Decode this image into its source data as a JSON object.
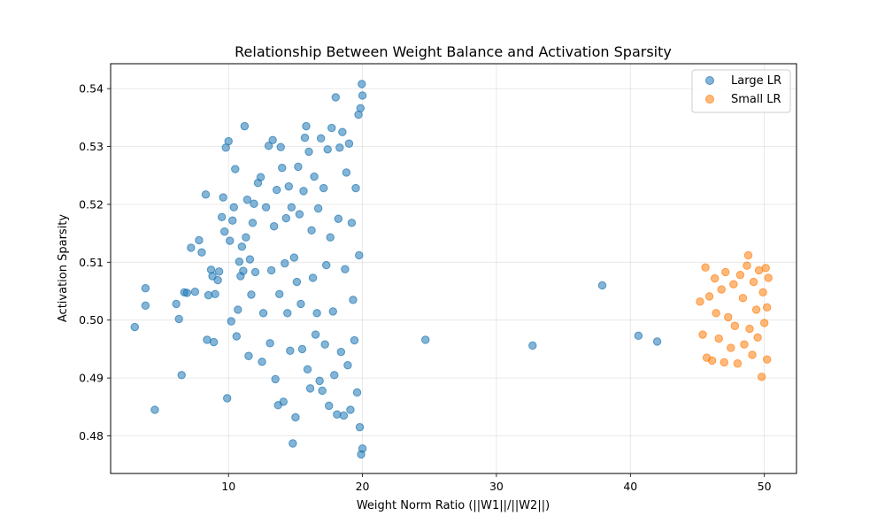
{
  "chart_data": {
    "type": "scatter",
    "title": "Relationship Between Weight Balance and Activation Sparsity",
    "xlabel": "Weight Norm Ratio (||W1||/||W2||)",
    "ylabel": "Activation Sparsity",
    "xlim": [
      1.2,
      52.4
    ],
    "ylim": [
      0.4735,
      0.5443
    ],
    "xticks": [
      10,
      20,
      30,
      40,
      50
    ],
    "yticks": [
      0.48,
      0.49,
      0.5,
      0.51,
      0.52,
      0.53,
      0.54
    ],
    "grid": true,
    "legend_position": "top-right",
    "series": [
      {
        "name": "Large LR",
        "color": "#1f77b4",
        "points": [
          [
            3.0,
            0.4988
          ],
          [
            3.8,
            0.5055
          ],
          [
            3.8,
            0.5025
          ],
          [
            4.5,
            0.4845
          ],
          [
            6.1,
            0.5028
          ],
          [
            6.3,
            0.5002
          ],
          [
            6.5,
            0.4905
          ],
          [
            6.7,
            0.5048
          ],
          [
            6.9,
            0.5047
          ],
          [
            7.2,
            0.5125
          ],
          [
            7.5,
            0.5049
          ],
          [
            7.8,
            0.5138
          ],
          [
            8.0,
            0.5117
          ],
          [
            8.3,
            0.5217
          ],
          [
            8.4,
            0.4966
          ],
          [
            8.5,
            0.5043
          ],
          [
            8.7,
            0.5087
          ],
          [
            8.8,
            0.5076
          ],
          [
            8.9,
            0.4962
          ],
          [
            9.0,
            0.5045
          ],
          [
            9.2,
            0.5069
          ],
          [
            9.3,
            0.5084
          ],
          [
            9.5,
            0.5178
          ],
          [
            9.6,
            0.5212
          ],
          [
            9.7,
            0.5153
          ],
          [
            9.8,
            0.5298
          ],
          [
            9.9,
            0.4865
          ],
          [
            10.0,
            0.5309
          ],
          [
            10.1,
            0.5137
          ],
          [
            10.2,
            0.4998
          ],
          [
            10.3,
            0.5172
          ],
          [
            10.4,
            0.5195
          ],
          [
            10.5,
            0.5261
          ],
          [
            10.6,
            0.4972
          ],
          [
            10.7,
            0.5018
          ],
          [
            10.8,
            0.5101
          ],
          [
            10.9,
            0.5076
          ],
          [
            11.0,
            0.5127
          ],
          [
            11.1,
            0.5085
          ],
          [
            11.2,
            0.5335
          ],
          [
            11.3,
            0.5143
          ],
          [
            11.4,
            0.5208
          ],
          [
            11.5,
            0.4938
          ],
          [
            11.6,
            0.5105
          ],
          [
            11.7,
            0.5044
          ],
          [
            11.8,
            0.5168
          ],
          [
            11.9,
            0.5201
          ],
          [
            12.0,
            0.5083
          ],
          [
            12.2,
            0.5237
          ],
          [
            12.4,
            0.5247
          ],
          [
            12.5,
            0.4928
          ],
          [
            12.6,
            0.5012
          ],
          [
            12.8,
            0.5195
          ],
          [
            13.0,
            0.5301
          ],
          [
            13.1,
            0.496
          ],
          [
            13.2,
            0.5086
          ],
          [
            13.3,
            0.5311
          ],
          [
            13.4,
            0.5162
          ],
          [
            13.5,
            0.4898
          ],
          [
            13.6,
            0.5225
          ],
          [
            13.7,
            0.4853
          ],
          [
            13.8,
            0.5045
          ],
          [
            13.9,
            0.5299
          ],
          [
            14.0,
            0.5263
          ],
          [
            14.1,
            0.4859
          ],
          [
            14.2,
            0.5098
          ],
          [
            14.3,
            0.5176
          ],
          [
            14.4,
            0.5012
          ],
          [
            14.5,
            0.5231
          ],
          [
            14.6,
            0.4947
          ],
          [
            14.7,
            0.5195
          ],
          [
            14.8,
            0.4787
          ],
          [
            14.9,
            0.5108
          ],
          [
            15.0,
            0.4832
          ],
          [
            15.1,
            0.5066
          ],
          [
            15.2,
            0.5265
          ],
          [
            15.3,
            0.5183
          ],
          [
            15.4,
            0.5028
          ],
          [
            15.5,
            0.495
          ],
          [
            15.6,
            0.5223
          ],
          [
            15.7,
            0.5315
          ],
          [
            15.8,
            0.5335
          ],
          [
            15.9,
            0.4915
          ],
          [
            16.0,
            0.5291
          ],
          [
            16.1,
            0.4882
          ],
          [
            16.2,
            0.5155
          ],
          [
            16.3,
            0.5073
          ],
          [
            16.4,
            0.5248
          ],
          [
            16.5,
            0.4975
          ],
          [
            16.6,
            0.5012
          ],
          [
            16.7,
            0.5193
          ],
          [
            16.8,
            0.4895
          ],
          [
            16.9,
            0.5314
          ],
          [
            17.0,
            0.4878
          ],
          [
            17.1,
            0.5228
          ],
          [
            17.2,
            0.4958
          ],
          [
            17.3,
            0.5095
          ],
          [
            17.4,
            0.5295
          ],
          [
            17.5,
            0.4852
          ],
          [
            17.6,
            0.5143
          ],
          [
            17.7,
            0.5332
          ],
          [
            17.8,
            0.5015
          ],
          [
            17.9,
            0.4905
          ],
          [
            18.0,
            0.5385
          ],
          [
            18.1,
            0.4837
          ],
          [
            18.2,
            0.5175
          ],
          [
            18.3,
            0.5298
          ],
          [
            18.4,
            0.4945
          ],
          [
            18.5,
            0.5325
          ],
          [
            18.6,
            0.4835
          ],
          [
            18.7,
            0.5088
          ],
          [
            18.8,
            0.5255
          ],
          [
            18.9,
            0.4922
          ],
          [
            19.0,
            0.5305
          ],
          [
            19.1,
            0.4845
          ],
          [
            19.2,
            0.5168
          ],
          [
            19.3,
            0.5035
          ],
          [
            19.4,
            0.4965
          ],
          [
            19.5,
            0.5228
          ],
          [
            19.6,
            0.4875
          ],
          [
            19.7,
            0.5355
          ],
          [
            19.75,
            0.5112
          ],
          [
            19.8,
            0.4815
          ],
          [
            19.85,
            0.5366
          ],
          [
            19.9,
            0.4768
          ],
          [
            19.95,
            0.5408
          ],
          [
            20.0,
            0.4778
          ],
          [
            20.0,
            0.5388
          ],
          [
            24.7,
            0.4966
          ],
          [
            32.7,
            0.4956
          ],
          [
            37.9,
            0.506
          ],
          [
            40.6,
            0.4973
          ],
          [
            42.0,
            0.4963
          ]
        ]
      },
      {
        "name": "Small LR",
        "color": "#ff7f0e",
        "points": [
          [
            45.2,
            0.5032
          ],
          [
            45.4,
            0.4975
          ],
          [
            45.6,
            0.5091
          ],
          [
            45.7,
            0.4935
          ],
          [
            45.9,
            0.5041
          ],
          [
            46.1,
            0.493
          ],
          [
            46.3,
            0.5072
          ],
          [
            46.4,
            0.5012
          ],
          [
            46.6,
            0.4968
          ],
          [
            46.8,
            0.5053
          ],
          [
            47.0,
            0.4927
          ],
          [
            47.1,
            0.5083
          ],
          [
            47.3,
            0.5005
          ],
          [
            47.5,
            0.4952
          ],
          [
            47.7,
            0.5062
          ],
          [
            47.8,
            0.499
          ],
          [
            48.0,
            0.4925
          ],
          [
            48.2,
            0.5078
          ],
          [
            48.4,
            0.5038
          ],
          [
            48.5,
            0.4958
          ],
          [
            48.7,
            0.5094
          ],
          [
            48.8,
            0.5112
          ],
          [
            48.9,
            0.4985
          ],
          [
            49.1,
            0.494
          ],
          [
            49.2,
            0.5066
          ],
          [
            49.4,
            0.5018
          ],
          [
            49.5,
            0.497
          ],
          [
            49.6,
            0.5086
          ],
          [
            49.8,
            0.4902
          ],
          [
            49.9,
            0.5048
          ],
          [
            50.0,
            0.4995
          ],
          [
            50.1,
            0.509
          ],
          [
            50.2,
            0.4932
          ],
          [
            50.2,
            0.5022
          ],
          [
            50.3,
            0.5073
          ]
        ]
      }
    ]
  }
}
